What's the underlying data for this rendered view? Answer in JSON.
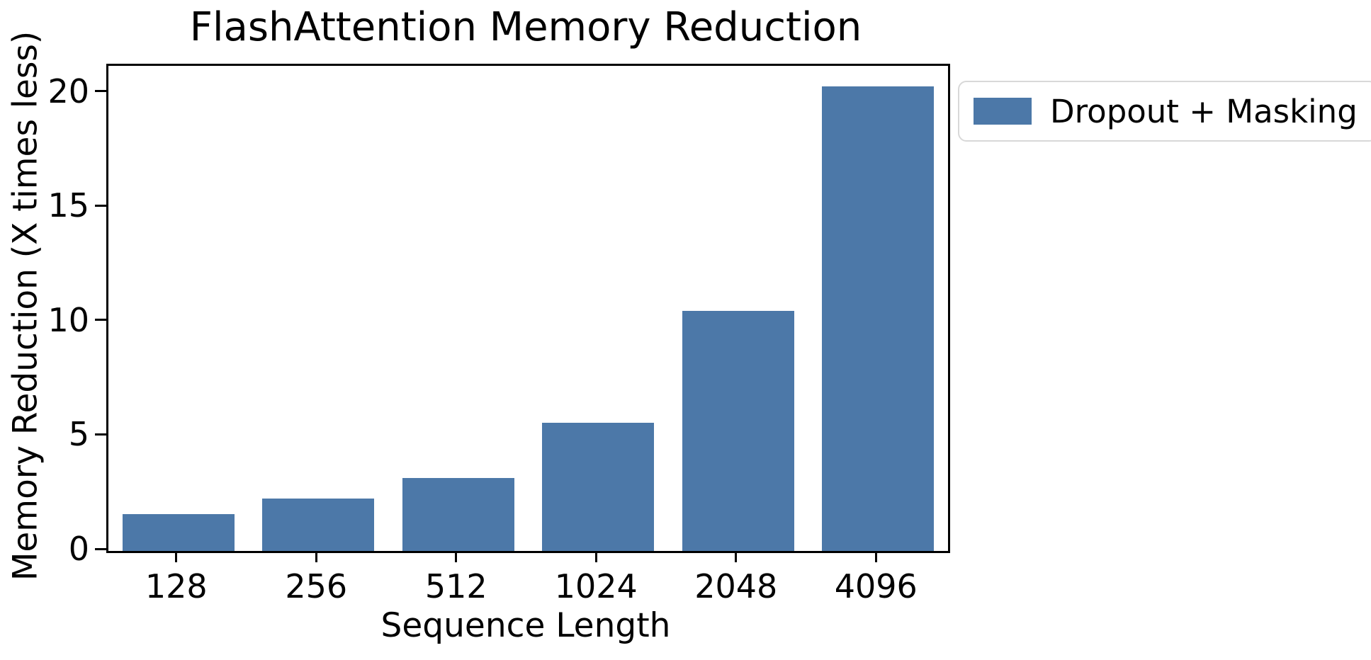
{
  "figure": {
    "background_color": "#ffffff",
    "spine_color": "#000000",
    "text_color": "#000000"
  },
  "chart_data": {
    "type": "bar",
    "title": "FlashAttention Memory Reduction",
    "xlabel": "Sequence Length",
    "ylabel": "Memory Reduction (X times less)",
    "categories": [
      "128",
      "256",
      "512",
      "1024",
      "2048",
      "4096"
    ],
    "series": [
      {
        "name": "Dropout + Masking",
        "values": [
          1.6,
          2.3,
          3.2,
          5.6,
          10.5,
          20.3
        ],
        "color": "#4c78a8"
      }
    ],
    "ylim": [
      0,
      21.2
    ],
    "yticks": [
      0,
      5,
      10,
      15,
      20
    ],
    "grid": false,
    "bar_width_fraction": 0.8,
    "legend_position": "outside-upper-right"
  },
  "legend": {
    "items": [
      {
        "label": "Dropout + Masking",
        "swatch_color": "#4c78a8"
      }
    ],
    "border_color": "#d8d8d8"
  }
}
